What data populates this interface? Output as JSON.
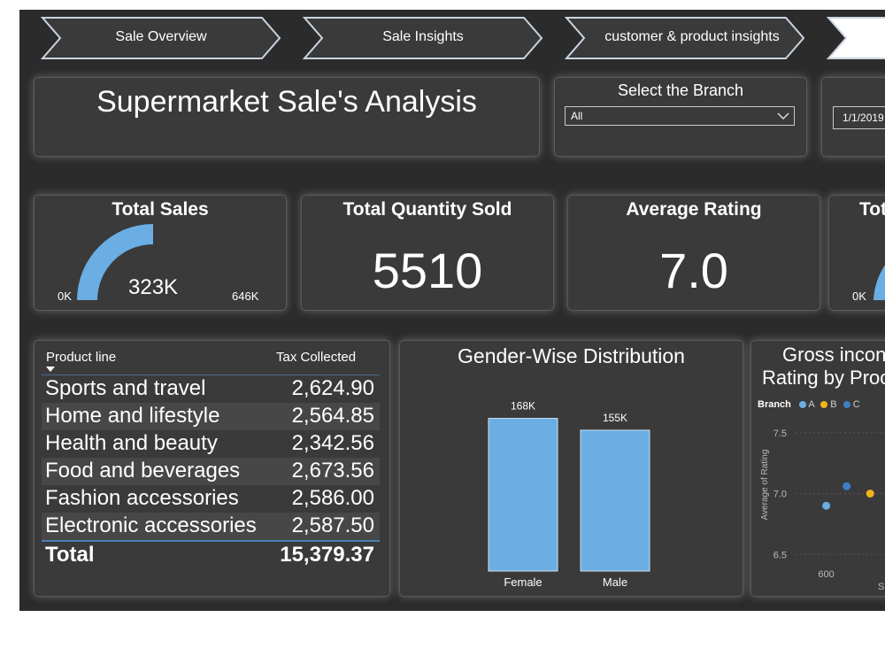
{
  "nav": {
    "tabs": [
      {
        "label": "Sale Overview"
      },
      {
        "label": "Sale Insights"
      },
      {
        "label": "customer & product insights"
      },
      {
        "label": ""
      }
    ]
  },
  "header": {
    "title": "Supermarket Sale's Analysis"
  },
  "branch_filter": {
    "label": "Select the Branch",
    "selected": "All"
  },
  "date_filter": {
    "value": "1/1/2019"
  },
  "kpis": {
    "total_sales": {
      "title": "Total Sales",
      "value_label": "323K",
      "min_label": "0K",
      "max_label": "646K",
      "fill_fraction": 0.5
    },
    "total_quantity": {
      "title": "Total Quantity Sold",
      "value": "5510"
    },
    "average_rating": {
      "title": "Average Rating",
      "value": "7.0"
    },
    "fourth": {
      "title": "Tot",
      "min_label": "0K"
    }
  },
  "product_table": {
    "headers": [
      "Product line",
      "Tax Collected"
    ],
    "rows": [
      {
        "product": "Sports and travel",
        "tax": "2,624.90"
      },
      {
        "product": "Home and lifestyle",
        "tax": "2,564.85"
      },
      {
        "product": "Health and beauty",
        "tax": "2,342.56"
      },
      {
        "product": "Food and beverages",
        "tax": "2,673.56"
      },
      {
        "product": "Fashion accessories",
        "tax": "2,586.00"
      },
      {
        "product": "Electronic accessories",
        "tax": "2,587.50"
      }
    ],
    "total_label": "Total",
    "total_value": "15,379.37"
  },
  "colors": {
    "accent": "#6aaee3",
    "branch_a": "#6aaee3",
    "branch_b": "#f2b319",
    "branch_c": "#3e7ec9",
    "background": "#2b2b2b",
    "card": "#3a3a3a"
  },
  "chart_data": [
    {
      "type": "bar",
      "title": "Gender-Wise Distribution",
      "categories": [
        "Female",
        "Male"
      ],
      "values": [
        168,
        155
      ],
      "value_labels": [
        "168K",
        "155K"
      ],
      "ylim": [
        0,
        190
      ]
    },
    {
      "type": "scatter",
      "title_lines": [
        "Gross incon",
        "Rating by Proc"
      ],
      "legend_title": "Branch",
      "legend": [
        "A",
        "B",
        "C"
      ],
      "ylabel": "Average of Rating",
      "xlabel": "S",
      "yticks": [
        "7.5",
        "7.0",
        "6.5"
      ],
      "xticks": [
        "600"
      ],
      "ylim": [
        6.4,
        7.6
      ],
      "xlim": [
        570,
        700
      ],
      "points": [
        {
          "series": "A",
          "x": 600,
          "y": 6.9
        },
        {
          "series": "C",
          "x": 620,
          "y": 7.06
        },
        {
          "series": "B",
          "x": 643,
          "y": 7.0
        }
      ]
    }
  ]
}
